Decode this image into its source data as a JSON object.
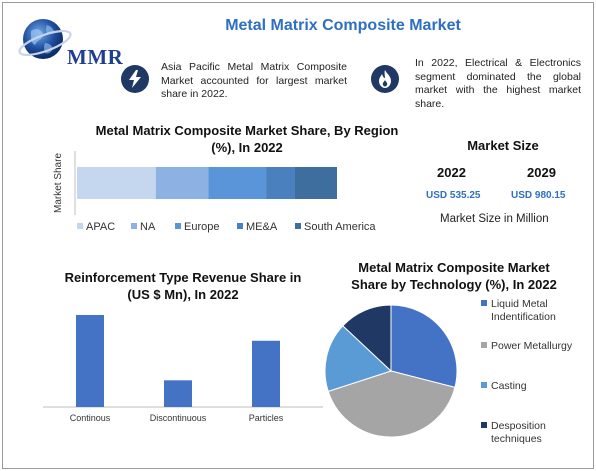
{
  "logo": {
    "text": "MMR"
  },
  "title": "Metal Matrix Composite Market",
  "info": [
    {
      "icon": "lightning-icon",
      "text": "Asia Pacific Metal Matrix Composite Market accounted for largest market share in 2022."
    },
    {
      "icon": "flame-icon",
      "text": "In 2022, Electrical & Electronics segment dominated the global market with the highest market share."
    }
  ],
  "market_size": {
    "title": "Market Size",
    "years": [
      {
        "year": "2022",
        "value": "USD 535.25"
      },
      {
        "year": "2029",
        "value": "USD 980.15"
      }
    ],
    "note": "Market Size in Million"
  },
  "colors": {
    "accent": "#2e6fc1",
    "dark_navy": "#1f3864",
    "bar_blue": "#4472c4"
  },
  "chart_data": [
    {
      "type": "bar",
      "orientation": "horizontal-stacked",
      "title": "Metal Matrix Composite Market Share, By Region (%), In 2022",
      "ylabel": "Market Share",
      "categories": [
        ""
      ],
      "series": [
        {
          "name": "APAC",
          "values": [
            30
          ],
          "color": "#c5d6ef"
        },
        {
          "name": "NA",
          "values": [
            20
          ],
          "color": "#8eb1e3"
        },
        {
          "name": "Europe",
          "values": [
            22
          ],
          "color": "#5a95da"
        },
        {
          "name": "ME&A",
          "values": [
            11
          ],
          "color": "#4a80bd"
        },
        {
          "name": "South America",
          "values": [
            16
          ],
          "color": "#3d6e9e"
        }
      ],
      "legend": "bottom"
    },
    {
      "type": "bar",
      "title": "Reinforcement Type Revenue Share in (US $ Mn), In 2022",
      "categories": [
        "Continous",
        "Discontinuous",
        "Particles"
      ],
      "values": [
        100,
        29,
        72
      ],
      "color": "#4472c4"
    },
    {
      "type": "pie",
      "title": "Metal Matrix Composite Market Share by Technology  (%), In 2022",
      "labels": [
        "Liquid Metal Indentification",
        "Power Metallurgy",
        "Casting",
        "Desposition techniques"
      ],
      "values": [
        29,
        41,
        17,
        13
      ],
      "colors": [
        "#4472c4",
        "#a5a5a5",
        "#5b9bd5",
        "#203864"
      ],
      "legend": "right"
    }
  ]
}
